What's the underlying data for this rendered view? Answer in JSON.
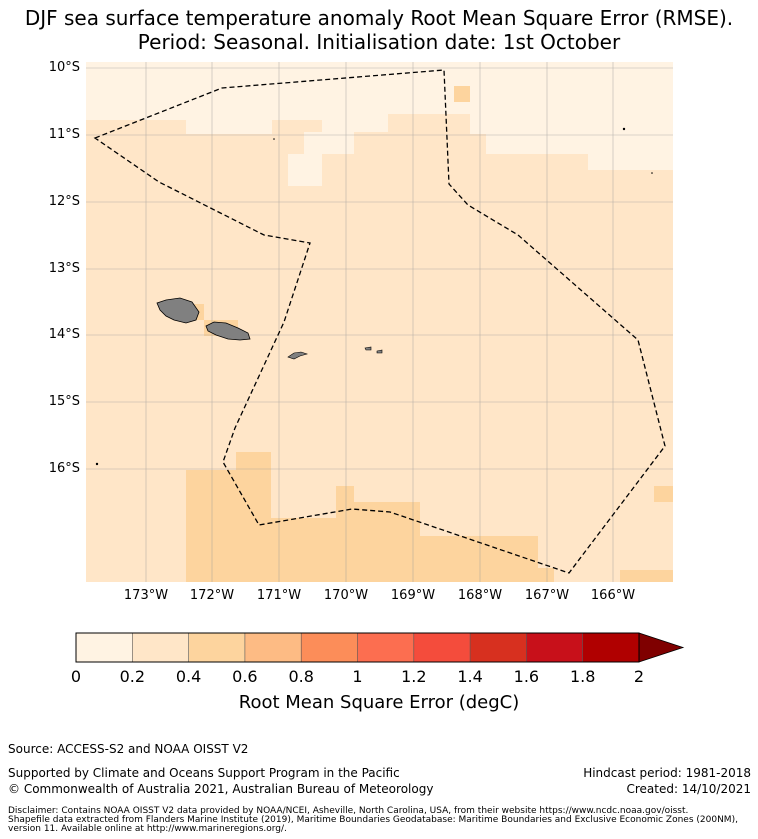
{
  "title": {
    "line1": "DJF sea surface temperature anomaly Root Mean Square Error (RMSE).",
    "line2": "Period: Seasonal. Initialisation date: 1st October"
  },
  "map": {
    "lat_labels": [
      "10°S",
      "11°S",
      "12°S",
      "13°S",
      "14°S",
      "15°S",
      "16°S"
    ],
    "lon_labels": [
      "173°W",
      "172°W",
      "171°W",
      "170°W",
      "169°W",
      "168°W",
      "167°W",
      "166°W"
    ],
    "land_color": "#808080",
    "eez_line_color": "#000000"
  },
  "colorbar": {
    "ticks": [
      "0",
      "0.2",
      "0.4",
      "0.6",
      "0.8",
      "1",
      "1.2",
      "1.4",
      "1.6",
      "1.8",
      "2"
    ],
    "colors": [
      "#fff3e3",
      "#ffe6c8",
      "#fdd49e",
      "#fdbb84",
      "#fc8d59",
      "#fc6e50",
      "#f44c3c",
      "#d7301f",
      "#c8101a",
      "#b00000",
      "#7f0000"
    ],
    "label": "Root Mean Square Error (degC)"
  },
  "footer": {
    "source": "Source: ACCESS-S2 and NOAA OISST V2",
    "supported": "Supported by Climate and Oceans Support Program in the Pacific",
    "copyright": "© Commonwealth of Australia 2021, Australian Bureau of Meteorology",
    "hindcast": "Hindcast period: 1981-2018",
    "created": "Created: 14/10/2021",
    "disclaimer1": "Disclaimer: Contains NOAA OISST V2 data provided by NOAA/NCEI, Asheville, North Carolina, USA, from their website https://www.ncdc.noaa.gov/oisst.",
    "disclaimer2": "Shapefile data extracted from Flanders Marine Institute (2019), Maritime Boundaries Geodatabase: Maritime Boundaries and Exclusive Economic Zones (200NM),",
    "disclaimer3": "version 11. Available online at http://www.marineregions.org/."
  }
}
